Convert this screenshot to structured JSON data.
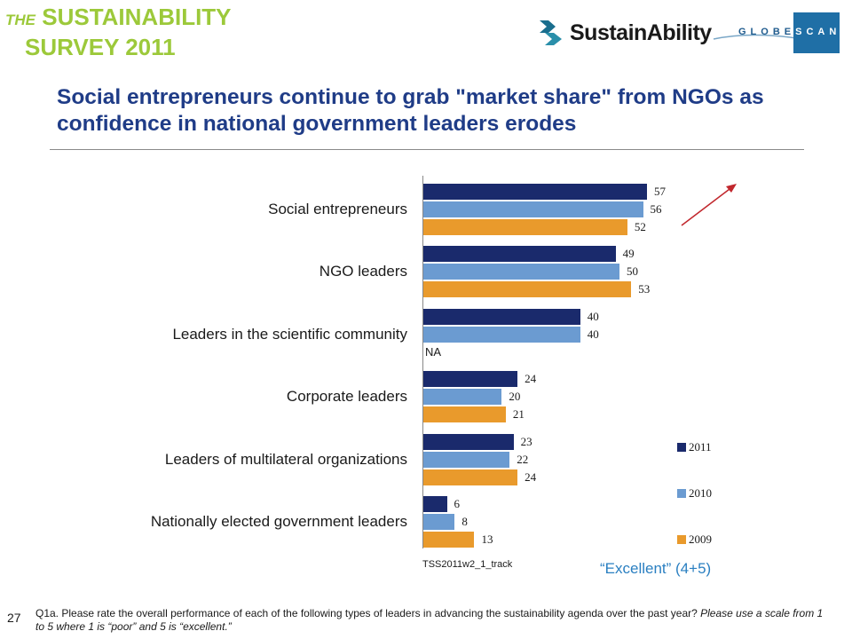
{
  "header": {
    "survey_the": "THE",
    "survey_word1": "SUSTAINABILITY",
    "survey_word2": "SURVEY 2011",
    "logo1_name": "SustainAbility",
    "logo2_text_left": "GLOBE",
    "logo2_text_right": "SCAN"
  },
  "headline": "Social entrepreneurs continue to grab \"market share\" from NGOs as confidence in national government leaders erodes",
  "chart_data": {
    "type": "bar",
    "orientation": "horizontal",
    "categories": [
      "Social entrepreneurs",
      "NGO leaders",
      "Leaders in the scientific community",
      "Corporate leaders",
      "Leaders of multilateral organizations",
      "Nationally elected government leaders"
    ],
    "series": [
      {
        "name": "2011",
        "color": "#1a2a6c",
        "values": [
          57,
          49,
          40,
          24,
          23,
          6
        ]
      },
      {
        "name": "2010",
        "color": "#6b9bd1",
        "values": [
          56,
          50,
          40,
          20,
          22,
          8
        ]
      },
      {
        "name": "2009",
        "color": "#e99a2c",
        "values": [
          52,
          53,
          null,
          21,
          24,
          13
        ]
      }
    ],
    "missing_label": "NA",
    "legend_position": "right"
  },
  "source_code": "TSS2011w2_1_track",
  "measure_note": "“Excellent” (4+5)",
  "footer": {
    "page_number": "27",
    "question_main": "Q1a. Please rate the overall performance of each of the following types of leaders in advancing the sustainability agenda over the past year?",
    "question_italic": "Please use a scale from 1 to 5 where 1 is “poor” and 5 is “excellent.”"
  }
}
